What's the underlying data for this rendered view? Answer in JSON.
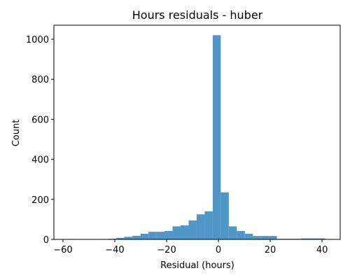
{
  "chart_data": {
    "type": "bar",
    "title": "Hours residuals - huber",
    "xlabel": "Residual (hours)",
    "ylabel": "Count",
    "xlim": [
      -63.5,
      47
    ],
    "ylim": [
      0,
      1070
    ],
    "xticks": [
      -60,
      -40,
      -20,
      0,
      20,
      40
    ],
    "xtick_labels": [
      "−60",
      "−40",
      "−20",
      "0",
      "20",
      "40"
    ],
    "yticks": [
      0,
      200,
      400,
      600,
      800,
      1000
    ],
    "ytick_labels": [
      "0",
      "200",
      "400",
      "600",
      "800",
      "1000"
    ],
    "bar_color": "#5096c6",
    "grid": false,
    "bins": [
      {
        "x0": -58.0,
        "x1": -54.9,
        "count": 2
      },
      {
        "x0": -54.9,
        "x1": -51.8,
        "count": 0
      },
      {
        "x0": -51.8,
        "x1": -48.7,
        "count": 1
      },
      {
        "x0": -48.7,
        "x1": -45.6,
        "count": 1
      },
      {
        "x0": -45.6,
        "x1": -42.5,
        "count": 2
      },
      {
        "x0": -42.5,
        "x1": -39.4,
        "count": 3
      },
      {
        "x0": -39.4,
        "x1": -36.3,
        "count": 8
      },
      {
        "x0": -36.3,
        "x1": -33.2,
        "count": 13
      },
      {
        "x0": -33.2,
        "x1": -30.1,
        "count": 18
      },
      {
        "x0": -30.1,
        "x1": -27.0,
        "count": 28
      },
      {
        "x0": -27.0,
        "x1": -23.9,
        "count": 38
      },
      {
        "x0": -23.9,
        "x1": -20.8,
        "count": 38
      },
      {
        "x0": -20.8,
        "x1": -17.7,
        "count": 42
      },
      {
        "x0": -17.7,
        "x1": -14.6,
        "count": 65
      },
      {
        "x0": -14.6,
        "x1": -11.5,
        "count": 70
      },
      {
        "x0": -11.5,
        "x1": -8.4,
        "count": 95
      },
      {
        "x0": -8.4,
        "x1": -5.3,
        "count": 125
      },
      {
        "x0": -5.3,
        "x1": -2.2,
        "count": 140
      },
      {
        "x0": -2.2,
        "x1": 0.9,
        "count": 1020
      },
      {
        "x0": 0.9,
        "x1": 4.0,
        "count": 235
      },
      {
        "x0": 4.0,
        "x1": 7.1,
        "count": 65
      },
      {
        "x0": 7.1,
        "x1": 10.2,
        "count": 42
      },
      {
        "x0": 10.2,
        "x1": 13.3,
        "count": 28
      },
      {
        "x0": 13.3,
        "x1": 16.4,
        "count": 17
      },
      {
        "x0": 16.4,
        "x1": 19.5,
        "count": 17
      },
      {
        "x0": 19.5,
        "x1": 22.6,
        "count": 17
      },
      {
        "x0": 22.6,
        "x1": 25.7,
        "count": 3
      },
      {
        "x0": 25.7,
        "x1": 28.8,
        "count": 3
      },
      {
        "x0": 28.8,
        "x1": 31.9,
        "count": 3
      },
      {
        "x0": 31.9,
        "x1": 35.0,
        "count": 5
      },
      {
        "x0": 35.0,
        "x1": 38.1,
        "count": 5
      },
      {
        "x0": 38.1,
        "x1": 41.2,
        "count": 5
      },
      {
        "x0": 41.2,
        "x1": 44.3,
        "count": 2
      }
    ]
  }
}
